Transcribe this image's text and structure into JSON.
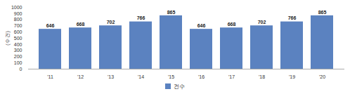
{
  "chart_data": {
    "type": "bar",
    "categories": [
      "'11",
      "'12",
      "'13",
      "'14",
      "'15",
      "'16",
      "'17",
      "'18",
      "'19",
      "'20"
    ],
    "series": [
      {
        "name": "건수",
        "color": "#5b82c0",
        "values": [
          646,
          668,
          702,
          766,
          865,
          646,
          668,
          702,
          766,
          865
        ]
      }
    ],
    "ylabel": "(수 건)",
    "ylim": [
      0,
      1000
    ],
    "yticks": [
      0,
      100,
      200,
      300,
      400,
      500,
      600,
      700,
      800,
      900,
      1000
    ],
    "data_labels": true,
    "legend": "bottom"
  }
}
